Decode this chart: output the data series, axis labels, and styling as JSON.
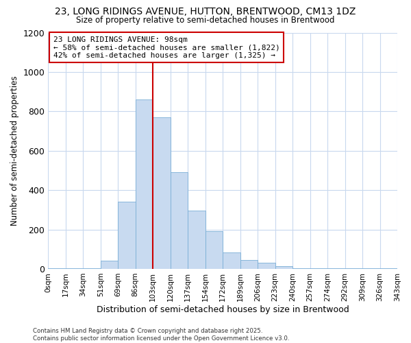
{
  "title1": "23, LONG RIDINGS AVENUE, HUTTON, BRENTWOOD, CM13 1DZ",
  "title2": "Size of property relative to semi-detached houses in Brentwood",
  "xlabel": "Distribution of semi-detached houses by size in Brentwood",
  "ylabel": "Number of semi-detached properties",
  "footnote": "Contains HM Land Registry data © Crown copyright and database right 2025.\nContains public sector information licensed under the Open Government Licence v3.0.",
  "bin_edges": [
    0,
    17,
    34,
    51,
    69,
    86,
    103,
    120,
    137,
    154,
    172,
    189,
    206,
    223,
    240,
    257,
    274,
    292,
    309,
    326,
    343
  ],
  "bin_labels": [
    "0sqm",
    "17sqm",
    "34sqm",
    "51sqm",
    "69sqm",
    "86sqm",
    "103sqm",
    "120sqm",
    "137sqm",
    "154sqm",
    "172sqm",
    "189sqm",
    "206sqm",
    "223sqm",
    "240sqm",
    "257sqm",
    "274sqm",
    "292sqm",
    "309sqm",
    "326sqm",
    "343sqm"
  ],
  "bar_heights": [
    2,
    2,
    2,
    40,
    340,
    860,
    770,
    490,
    295,
    190,
    85,
    45,
    30,
    15,
    5,
    2,
    2,
    2,
    2,
    2
  ],
  "bar_color": "#c8daf0",
  "bar_edge_color": "#7aaed6",
  "property_size": 98,
  "red_line_bin_index": 6,
  "ylim": [
    0,
    1200
  ],
  "yticks": [
    0,
    200,
    400,
    600,
    800,
    1000,
    1200
  ],
  "annotation_title": "23 LONG RIDINGS AVENUE: 98sqm",
  "annotation_line1": "← 58% of semi-detached houses are smaller (1,822)",
  "annotation_line2": "42% of semi-detached houses are larger (1,325) →",
  "annotation_box_color": "#ffffff",
  "annotation_box_edge": "#cc0000",
  "background_color": "#ffffff",
  "grid_color": "#c8d8ee"
}
